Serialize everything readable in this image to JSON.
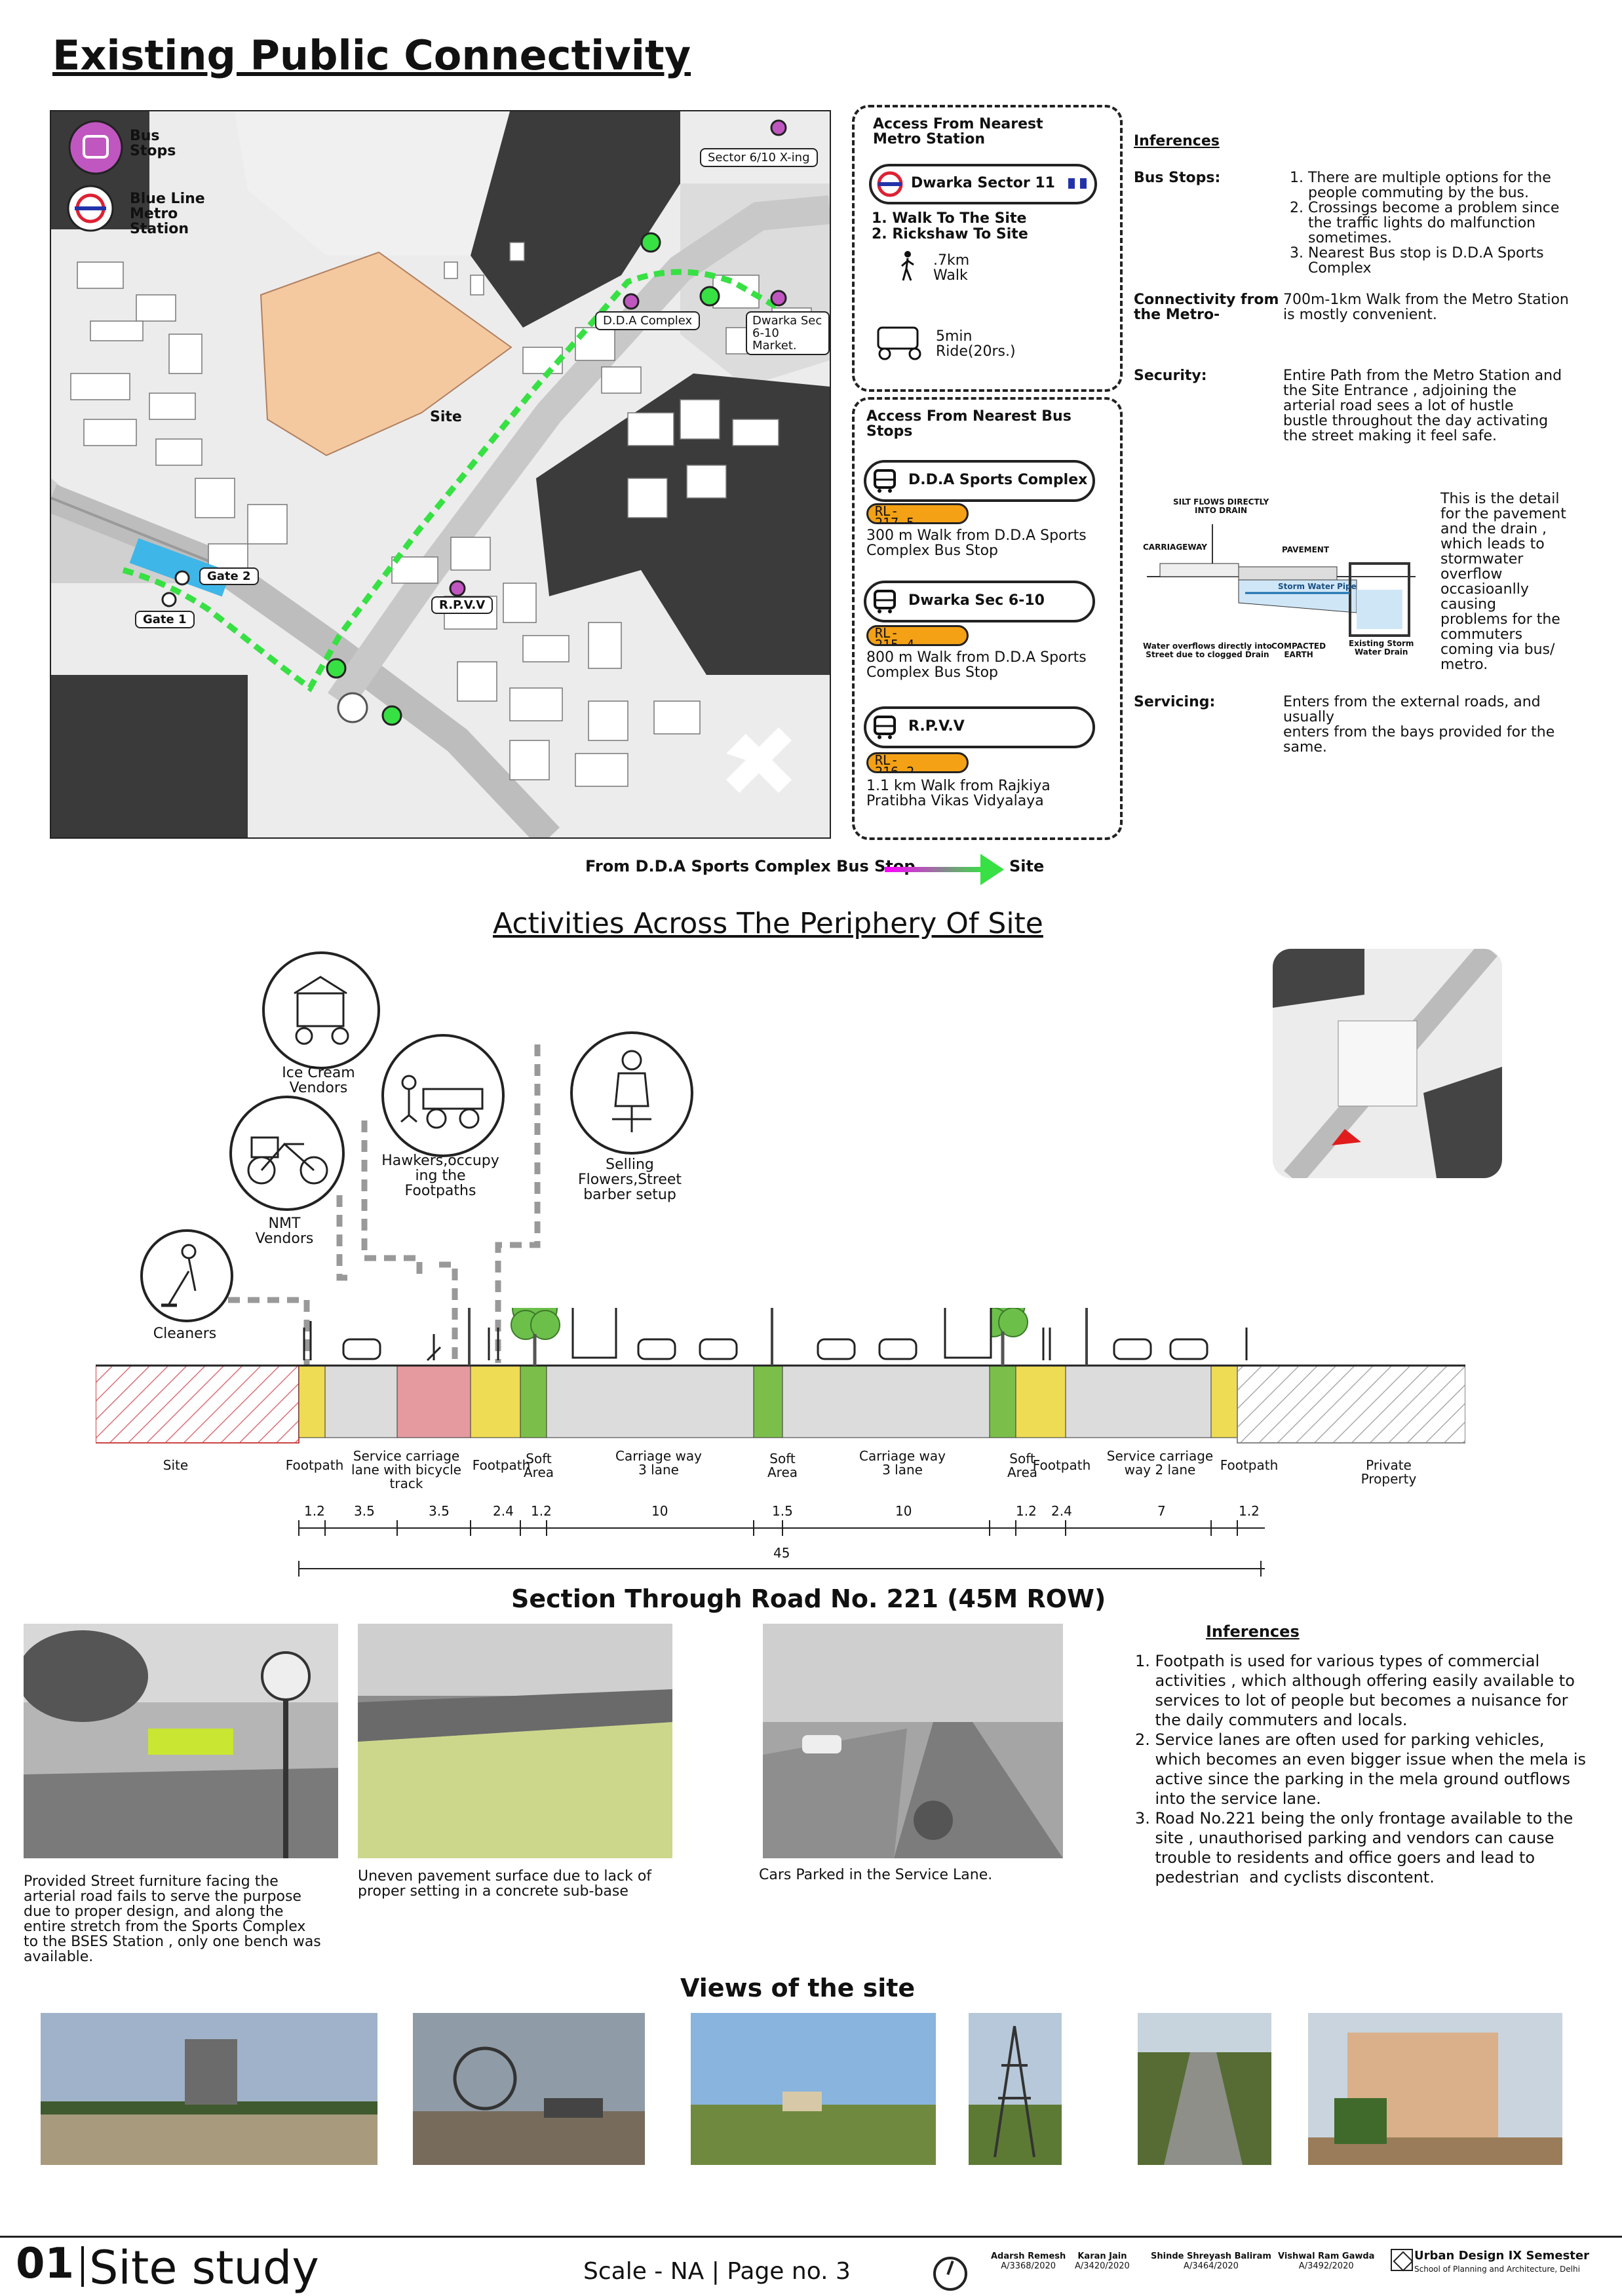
{
  "title_connectivity": "Existing Public Connectivity",
  "map": {
    "legend": [
      {
        "label": "Bus\nStops"
      },
      {
        "label": "Blue Line\nMetro\nStation"
      }
    ],
    "labels": {
      "sector_x_ing": "Sector 6/10 X-ing",
      "dda_complex": "D.D.A Complex",
      "dwarka_market": "Dwarka Sec\n6-10 Market.",
      "site": "Site",
      "gate2": "Gate 2",
      "gate1": "Gate 1",
      "rpvv": "R.P.V.V"
    },
    "caption": "From D.D.A Sports Complex Bus Stop",
    "caption_end": "Site"
  },
  "metro_box": {
    "title": "Access From Nearest\nMetro Station",
    "station": "Dwarka Sector 11",
    "options": [
      "1. Walk To The Site",
      "2. Rickshaw To Site"
    ],
    "walk": ".7km\nWalk",
    "ride": "5min\nRide(20rs.)"
  },
  "bus_box": {
    "title": "Access From Nearest Bus\nStops",
    "stops": [
      {
        "name": "D.D.A Sports Complex",
        "rl": "RL-\n217.5",
        "desc": "300 m Walk from D.D.A Sports\nComplex Bus Stop"
      },
      {
        "name": "Dwarka Sec 6-10",
        "rl": "RL-\n215.4",
        "desc": "800 m Walk from D.D.A Sports\nComplex Bus Stop"
      },
      {
        "name": "R.P.V.V",
        "rl": "RL-\n216.2",
        "desc": "1.1 km Walk from Rajkiya\nPratibha Vikas Vidyalaya"
      }
    ]
  },
  "inferences_top": {
    "heading": "Inferences",
    "rows": [
      {
        "label": "Bus Stops:",
        "text": "1. There are multiple options for the\n    people commuting by the bus.\n2. Crossings become a problem since\n    the traffic lights do malfunction\n    sometimes.\n3. Nearest Bus stop is D.D.A Sports\n    Complex"
      },
      {
        "label": "Connectivity from\nthe Metro-",
        "text": "700m-1km Walk from the Metro Station\nis mostly convenient."
      },
      {
        "label": "Security:",
        "text": "Entire Path from the Metro Station and\nthe Site Entrance , adjoining the\narterial road sees a lot of hustle\nbustle throughout the day activating\nthe street making it feel safe."
      },
      {
        "label": "Servicing:",
        "text": "Enters from the external roads, and\nusually\nenters from the bays provided for the\nsame."
      }
    ],
    "drain_note": "This is the detail\nfor the pavement\nand the drain ,\nwhich leads to\nstormwater\noverflow\noccasioanlly\ncausing\nproblems for the\ncommuters\ncoming via bus/\nmetro.",
    "drain_labels": {
      "silt": "SILT FLOWS DIRECTLY\nINTO DRAIN",
      "carriageway": "CARRIAGEWAY",
      "pavement": "PAVEMENT",
      "pipe": "Storm Water Pipe",
      "overflow": "Water overflows directly into\nStreet due to clogged Drain",
      "earth": "COMPACTED\nEARTH",
      "existing": "Existing Storm\nWater Drain"
    }
  },
  "title_activities": "Activities Across The Periphery Of Site",
  "activities": [
    {
      "label": "Ice Cream\nVendors"
    },
    {
      "label": "Hawkers,occupy\ning the\nFootpaths"
    },
    {
      "label": "Selling\nFlowers,Street\nbarber setup"
    },
    {
      "label": "NMT\nVendors"
    },
    {
      "label": "Cleaners"
    }
  ],
  "section": {
    "zones": [
      "Site",
      "Footpath",
      "Service carriage\nlane with bicycle\ntrack",
      "Footpath",
      "Soft\nArea",
      "Carriage way\n3 lane",
      "Soft\nArea",
      "Carriage way\n3 lane",
      "Soft\nArea",
      "Footpath",
      "Service carriage\nway 2 lane",
      "Footpath",
      "Private\nProperty"
    ],
    "dims": [
      "1.2",
      "3.5",
      "3.5",
      "2.4",
      "1.2",
      "10",
      "1.5",
      "10",
      "1.2",
      "2.4",
      "7",
      "1.2"
    ],
    "total": "45",
    "title": "Section Through  Road No. 221 (45M ROW)"
  },
  "photos": [
    {
      "caption": "Provided Street furniture facing the\narterial road fails to serve the purpose\ndue to proper design, and along the\nentire stretch from the Sports Complex\nto the BSES Station , only one bench was\navailable."
    },
    {
      "caption": "Uneven pavement surface due to lack of\nproper setting in a concrete sub-base"
    },
    {
      "caption": "Cars Parked in the Service Lane."
    }
  ],
  "inferences_bottom": {
    "heading": "Inferences",
    "items": [
      "1. Footpath is used for various types of commercial\n    activities , which although offering easily available to\n    services to lot of people but becomes a nuisance for\n    the daily commuters and locals.",
      "2. Service lanes are often used for parking vehicles,\n    which becomes an even bigger issue when the mela is\n    active since the parking in the mela ground outflows\n    into the service lane.",
      "3. Road No.221 being the only frontage available to the\n    site , unauthorised parking and vendors can cause\n    trouble to residents and office goers and lead to\n    pedestrian  and cyclists discontent."
    ]
  },
  "title_views": "Views of the site",
  "footer": {
    "number": "01",
    "title": "Site study",
    "scale": "Scale - NA  |  Page no. 3",
    "authors": [
      {
        "name": "Adarsh Remesh",
        "id": "A/3368/2020"
      },
      {
        "name": "Karan Jain",
        "id": "A/3420/2020"
      },
      {
        "name": "Shinde Shreyash Baliram",
        "id": "A/3464/2020"
      },
      {
        "name": "Vishwal Ram Gawda",
        "id": "A/3492/2020"
      }
    ],
    "course": "Urban Design IX Semester",
    "school": "School of Planning and Architecture, Delhi"
  },
  "colors": {
    "footpath": "#efdc55",
    "soft": "#7bbf4a",
    "bicycle": "#e59aa0",
    "carriage": "#dcdcdc",
    "route": "#37e043",
    "site_plot": "#f4c9a0",
    "metro_blue": "#3fb6e8",
    "rl": "#f4a116"
  }
}
